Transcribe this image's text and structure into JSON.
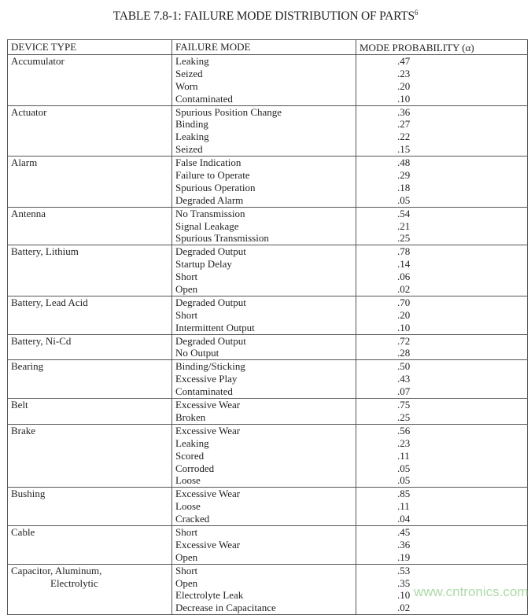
{
  "title": "TABLE 7.8-1:  FAILURE MODE DISTRIBUTION OF PARTS",
  "title_superscript": "6",
  "headers": [
    "DEVICE TYPE",
    "FAILURE MODE",
    "MODE PROBABILITY (α)"
  ],
  "groups": [
    {
      "device": [
        "Accumulator"
      ],
      "modes": [
        [
          "Leaking",
          ".47"
        ],
        [
          "Seized",
          ".23"
        ],
        [
          "Worn",
          ".20"
        ],
        [
          "Contaminated",
          ".10"
        ]
      ]
    },
    {
      "device": [
        "Actuator"
      ],
      "modes": [
        [
          "Spurious Position Change",
          ".36"
        ],
        [
          "Binding",
          ".27"
        ],
        [
          "Leaking",
          ".22"
        ],
        [
          "Seized",
          ".15"
        ]
      ]
    },
    {
      "device": [
        "Alarm"
      ],
      "modes": [
        [
          "False Indication",
          ".48"
        ],
        [
          "Failure to Operate",
          ".29"
        ],
        [
          "Spurious Operation",
          ".18"
        ],
        [
          "Degraded Alarm",
          ".05"
        ]
      ]
    },
    {
      "device": [
        "Antenna"
      ],
      "modes": [
        [
          "No Transmission",
          ".54"
        ],
        [
          "Signal Leakage",
          ".21"
        ],
        [
          "Spurious Transmission",
          ".25"
        ]
      ]
    },
    {
      "device": [
        "Battery, Lithium"
      ],
      "modes": [
        [
          "Degraded Output",
          ".78"
        ],
        [
          "Startup Delay",
          ".14"
        ],
        [
          "Short",
          ".06"
        ],
        [
          "Open",
          ".02"
        ]
      ]
    },
    {
      "device": [
        "Battery, Lead Acid"
      ],
      "modes": [
        [
          "Degraded Output",
          ".70"
        ],
        [
          "Short",
          ".20"
        ],
        [
          "Intermittent Output",
          ".10"
        ]
      ]
    },
    {
      "device": [
        "Battery, Ni-Cd"
      ],
      "modes": [
        [
          "Degraded Output",
          ".72"
        ],
        [
          "No Output",
          ".28"
        ]
      ]
    },
    {
      "device": [
        "Bearing"
      ],
      "modes": [
        [
          "Binding/Sticking",
          ".50"
        ],
        [
          "Excessive Play",
          ".43"
        ],
        [
          "Contaminated",
          ".07"
        ]
      ]
    },
    {
      "device": [
        "Belt"
      ],
      "modes": [
        [
          "Excessive Wear",
          ".75"
        ],
        [
          "Broken",
          ".25"
        ]
      ]
    },
    {
      "device": [
        "Brake"
      ],
      "modes": [
        [
          "Excessive Wear",
          ".56"
        ],
        [
          "Leaking",
          ".23"
        ],
        [
          "Scored",
          ".11"
        ],
        [
          "Corroded",
          ".05"
        ],
        [
          "Loose",
          ".05"
        ]
      ]
    },
    {
      "device": [
        "Bushing"
      ],
      "modes": [
        [
          "Excessive Wear",
          ".85"
        ],
        [
          "Loose",
          ".11"
        ],
        [
          "Cracked",
          ".04"
        ]
      ]
    },
    {
      "device": [
        "Cable"
      ],
      "modes": [
        [
          "Short",
          ".45"
        ],
        [
          "Excessive Wear",
          ".36"
        ],
        [
          "Open",
          ".19"
        ]
      ]
    },
    {
      "device": [
        "Capacitor, Aluminum,",
        "Electrolytic"
      ],
      "modes": [
        [
          "Short",
          ".53"
        ],
        [
          "Open",
          ".35"
        ],
        [
          "Electrolyte Leak",
          ".10"
        ],
        [
          "Decrease in Capacitance",
          ".02"
        ]
      ]
    }
  ],
  "watermark": "www.cntronics.com"
}
